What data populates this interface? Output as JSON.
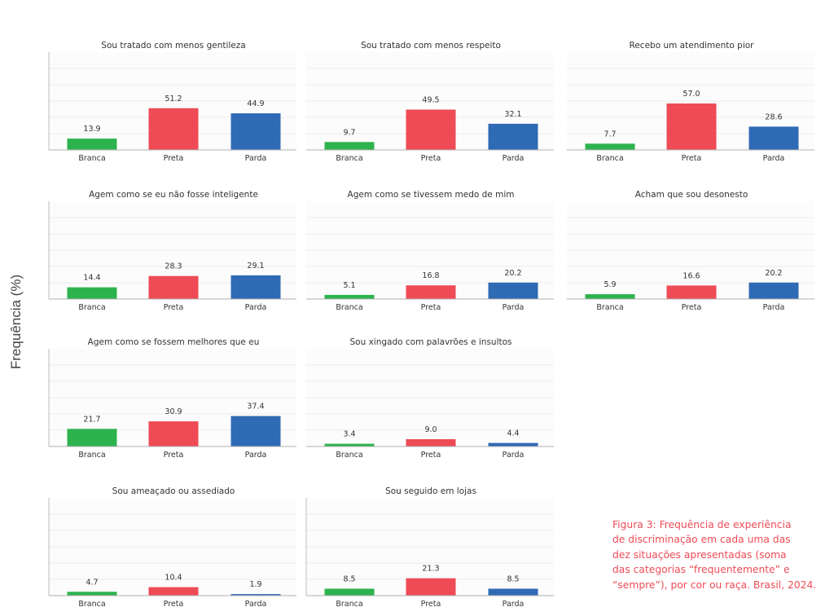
{
  "chart_data": {
    "type": "bar",
    "ylabel": "Frequência (%)",
    "ylim": [
      0,
      120
    ],
    "grid": true,
    "gridline_step": 20,
    "categories": [
      "Branca",
      "Preta",
      "Parda"
    ],
    "colors": {
      "Branca": "#2db34e",
      "Preta": "#ee4b56",
      "Parda": "#2f6ab4"
    },
    "panels": [
      {
        "title": "Sou tratado com menos gentileza",
        "values": [
          13.9,
          51.2,
          44.9
        ],
        "labels": [
          "13.9",
          "51.2",
          "44.9"
        ]
      },
      {
        "title": "Sou tratado com menos respeito",
        "values": [
          9.7,
          49.5,
          32.1
        ],
        "labels": [
          "9.7",
          "49.5",
          "32.1"
        ]
      },
      {
        "title": "Recebo um atendimento pior",
        "values": [
          7.7,
          57.0,
          28.6
        ],
        "labels": [
          "7.7",
          "57.0",
          "28.6"
        ]
      },
      {
        "title": "Agem como se eu não fosse inteligente",
        "values": [
          14.4,
          28.3,
          29.1
        ],
        "labels": [
          "14.4",
          "28.3",
          "29.1"
        ]
      },
      {
        "title": "Agem como se tivessem medo de mim",
        "values": [
          5.1,
          16.8,
          20.2
        ],
        "labels": [
          "5.1",
          "16.8",
          "20.2"
        ]
      },
      {
        "title": "Acham que sou desonesto",
        "values": [
          5.9,
          16.6,
          20.2
        ],
        "labels": [
          "5.9",
          "16.6",
          "20.2"
        ]
      },
      {
        "title": "Agem como se fossem melhores que eu",
        "values": [
          21.7,
          30.9,
          37.4
        ],
        "labels": [
          "21.7",
          "30.9",
          "37.4"
        ]
      },
      {
        "title": "Sou xingado com palavrões e insultos",
        "values": [
          3.4,
          9.0,
          4.4
        ],
        "labels": [
          "3.4",
          "9.0",
          "4.4"
        ]
      },
      {
        "title": "Sou ameaçado ou assediado",
        "values": [
          4.7,
          10.4,
          1.9
        ],
        "labels": [
          "4.7",
          "10.4",
          "1.9"
        ]
      },
      {
        "title": "Sou seguido em lojas",
        "values": [
          8.5,
          21.3,
          8.5
        ],
        "labels": [
          "8.5",
          "21.3",
          "8.5"
        ]
      }
    ],
    "caption_lines": [
      "Figura 3: Frequência de experiência",
      "de discriminação em cada uma das",
      "dez situações apresentadas (soma",
      "das categorias “frequentemente” e",
      "“sempre”), por cor ou raça. Brasil, 2024."
    ]
  }
}
